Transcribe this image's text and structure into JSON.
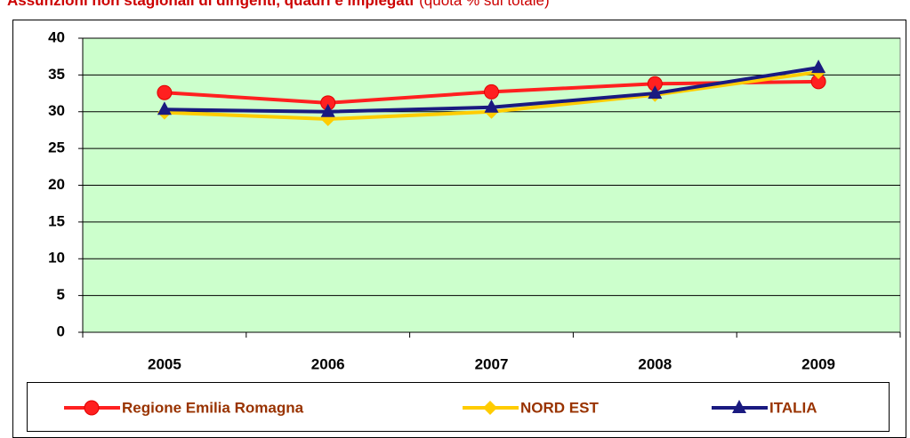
{
  "chart_data": {
    "type": "line",
    "title": "Assunzioni non stagionali di dirigenti, quadri e impiegati",
    "subtitle": "(quota % sul totale)",
    "categories": [
      "2005",
      "2006",
      "2007",
      "2008",
      "2009"
    ],
    "series": [
      {
        "name": "Regione Emilia Romagna",
        "color": "#ff2020",
        "marker": "circle",
        "values": [
          32.6,
          31.2,
          32.7,
          33.8,
          34.1
        ]
      },
      {
        "name": "NORD EST",
        "color": "#ffcc00",
        "marker": "diamond",
        "values": [
          29.9,
          29.0,
          30.0,
          32.3,
          35.4
        ]
      },
      {
        "name": "ITALIA",
        "color": "#1a1a80",
        "marker": "triangle",
        "values": [
          30.3,
          30.0,
          30.6,
          32.5,
          36.0
        ]
      }
    ],
    "ylim": [
      0,
      40
    ],
    "yticks": [
      0,
      5,
      10,
      15,
      20,
      25,
      30,
      35,
      40
    ],
    "grid": true,
    "plot_background": "#ccffcc",
    "legend": "bottom"
  }
}
